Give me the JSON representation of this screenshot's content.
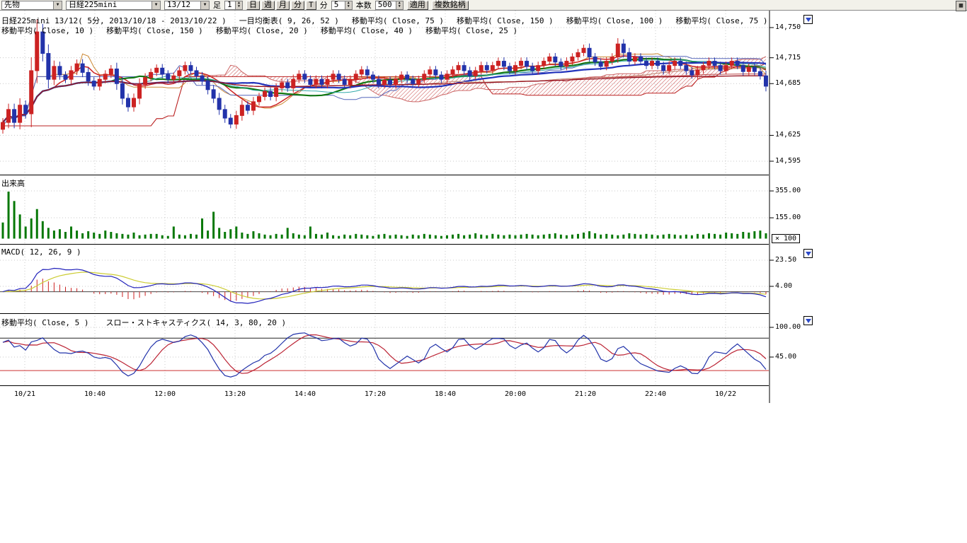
{
  "icons": {
    "dropdown": "▼",
    "spin_up": "▲",
    "spin_down": "▼",
    "grid": "▦"
  },
  "toolbar": {
    "instrument_type": "先物",
    "symbol": "日経225mini",
    "contract_month": "13/12",
    "bar_label": "足",
    "interval_value": "1",
    "period_buttons": [
      "日",
      "週",
      "月",
      "分",
      "T"
    ],
    "minute_label": "分",
    "minute_value": "5",
    "bars_label": "本数",
    "bars_value": "500",
    "apply_label": "適用",
    "multi_symbol_label": "複数銘柄"
  },
  "price_pane": {
    "indicators_line1": [
      "日経225mini 13/12( 5分, 2013/10/18 - 2013/10/22 )",
      "一目均衡表( 9, 26, 52 )",
      "移動平均( Close, 75 )",
      "移動平均( Close, 150 )",
      "移動平均( Close, 100 )",
      "移動平均( Close, 75 )"
    ],
    "indicators_line2": [
      "移動平均( Close, 10 )",
      "移動平均( Close, 150 )",
      "移動平均( Close, 20 )",
      "移動平均( Close, 40 )",
      "移動平均( Close, 25 )"
    ]
  },
  "volume_pane": {
    "label": "出来高",
    "multiplier": "× 100"
  },
  "macd_pane": {
    "label": "MACD( 12, 26, 9 )"
  },
  "stoch_pane": {
    "labels": [
      "移動平均( Close, 5 )",
      "スロー・ストキャスティクス( 14, 3, 80, 20 )"
    ]
  },
  "chart_data": {
    "type": "candlestick",
    "title": "日経225mini 13/12( 5分, 2013/10/18 - 2013/10/22 )",
    "x_ticks": [
      "10/21",
      "10:40",
      "12:00",
      "13:20",
      "14:40",
      "17:20",
      "18:40",
      "20:00",
      "21:20",
      "22:40",
      "10/22"
    ],
    "price_axis": {
      "values": [
        14750,
        14715,
        14685,
        14625,
        14595
      ],
      "display": [
        "14,750",
        "14,715",
        "14,685",
        "14,625",
        "14,595"
      ]
    },
    "volume_axis": {
      "values": [
        355,
        155
      ],
      "display": [
        "355.00",
        "155.00"
      ],
      "multiplier": 100
    },
    "macd_axis": {
      "values": [
        23.5,
        4.0
      ],
      "display": [
        "23.50",
        "4.00"
      ]
    },
    "stoch_axis": {
      "values": [
        100,
        45
      ],
      "display": [
        "100.00",
        "45.00"
      ]
    },
    "closes": [
      14640,
      14655,
      14640,
      14660,
      14650,
      14700,
      14745,
      14720,
      14690,
      14705,
      14695,
      14690,
      14700,
      14708,
      14698,
      14688,
      14682,
      14690,
      14696,
      14702,
      14685,
      14668,
      14658,
      14668,
      14684,
      14692,
      14698,
      14703,
      14696,
      14690,
      14694,
      14700,
      14706,
      14700,
      14694,
      14688,
      14678,
      14668,
      14655,
      14645,
      14638,
      14648,
      14660,
      14654,
      14664,
      14670,
      14676,
      14670,
      14680,
      14686,
      14680,
      14690,
      14696,
      14690,
      14684,
      14690,
      14684,
      14690,
      14696,
      14690,
      14684,
      14690,
      14696,
      14701,
      14695,
      14690,
      14684,
      14689,
      14684,
      14690,
      14695,
      14690,
      14685,
      14690,
      14696,
      14701,
      14695,
      14690,
      14696,
      14701,
      14706,
      14700,
      14694,
      14700,
      14706,
      14701,
      14706,
      14711,
      14705,
      14700,
      14706,
      14711,
      14705,
      14700,
      14706,
      14711,
      14716,
      14710,
      14705,
      14711,
      14716,
      14721,
      14726,
      14716,
      14710,
      14705,
      14711,
      14716,
      14731,
      14721,
      14711,
      14716,
      14711,
      14706,
      14711,
      14706,
      14700,
      14706,
      14711,
      14706,
      14700,
      14695,
      14701,
      14706,
      14711,
      14706,
      14700,
      14706,
      14711,
      14706,
      14699,
      14704,
      14699,
      14694,
      14682
    ],
    "volumes": [
      120,
      350,
      280,
      180,
      90,
      150,
      220,
      130,
      80,
      60,
      70,
      50,
      90,
      60,
      40,
      55,
      45,
      35,
      60,
      50,
      40,
      35,
      30,
      45,
      25,
      30,
      35,
      35,
      25,
      20,
      90,
      30,
      25,
      35,
      30,
      150,
      60,
      200,
      80,
      50,
      70,
      90,
      45,
      35,
      55,
      40,
      30,
      25,
      35,
      30,
      80,
      40,
      30,
      25,
      90,
      35,
      30,
      45,
      25,
      20,
      30,
      25,
      35,
      30,
      25,
      20,
      30,
      35,
      25,
      30,
      25,
      20,
      30,
      25,
      35,
      30,
      25,
      20,
      25,
      30,
      35,
      25,
      30,
      40,
      30,
      25,
      35,
      30,
      25,
      30,
      25,
      30,
      35,
      30,
      25,
      30,
      35,
      40,
      30,
      25,
      30,
      35,
      45,
      55,
      40,
      30,
      35,
      30,
      25,
      30,
      40,
      35,
      30,
      35,
      30,
      25,
      30,
      35,
      30,
      25,
      30,
      25,
      35,
      30,
      40,
      35,
      30,
      45,
      40,
      35,
      50,
      45,
      55,
      60,
      40
    ],
    "candle_up_color": "#cc2222",
    "candle_down_color": "#2233aa",
    "volume_color": "#067806",
    "ichimoku": {
      "params": [
        9,
        26,
        52
      ],
      "cloud_color": "#cc5555",
      "tenkan_color": "#cc8833",
      "kijun_color": "#5566bb",
      "spanA_color": "#cc6666",
      "spanB_color": "#bb2222"
    },
    "moving_averages": [
      {
        "period": 10,
        "color": "#cc2222",
        "width": 1.5
      },
      {
        "period": 20,
        "color": "#117711",
        "width": 2.2
      },
      {
        "period": 25,
        "color": "#33aaaa",
        "width": 1
      },
      {
        "period": 40,
        "color": "#2233bb",
        "width": 2.2
      },
      {
        "period": 75,
        "color": "#99bb33",
        "width": 1
      },
      {
        "period": 75,
        "color": "#cc8888",
        "width": 1
      },
      {
        "period": 100,
        "color": "#bb4444",
        "width": 1
      },
      {
        "period": 150,
        "color": "#cc2222",
        "width": 1.3
      },
      {
        "period": 150,
        "color": "#881122",
        "width": 1
      }
    ],
    "macd": {
      "params": [
        12,
        26,
        9
      ],
      "line_color": "#2222bb",
      "signal_color": "#cccc33",
      "hist_color": "#cc2222"
    },
    "stochastics": {
      "params": [
        14,
        3,
        80,
        20
      ],
      "k_color": "#2233aa",
      "d_color": "#bb2233",
      "upper_line": 80,
      "lower_line": 20,
      "upper_color": "#222222",
      "lower_color": "#cc3333"
    }
  }
}
